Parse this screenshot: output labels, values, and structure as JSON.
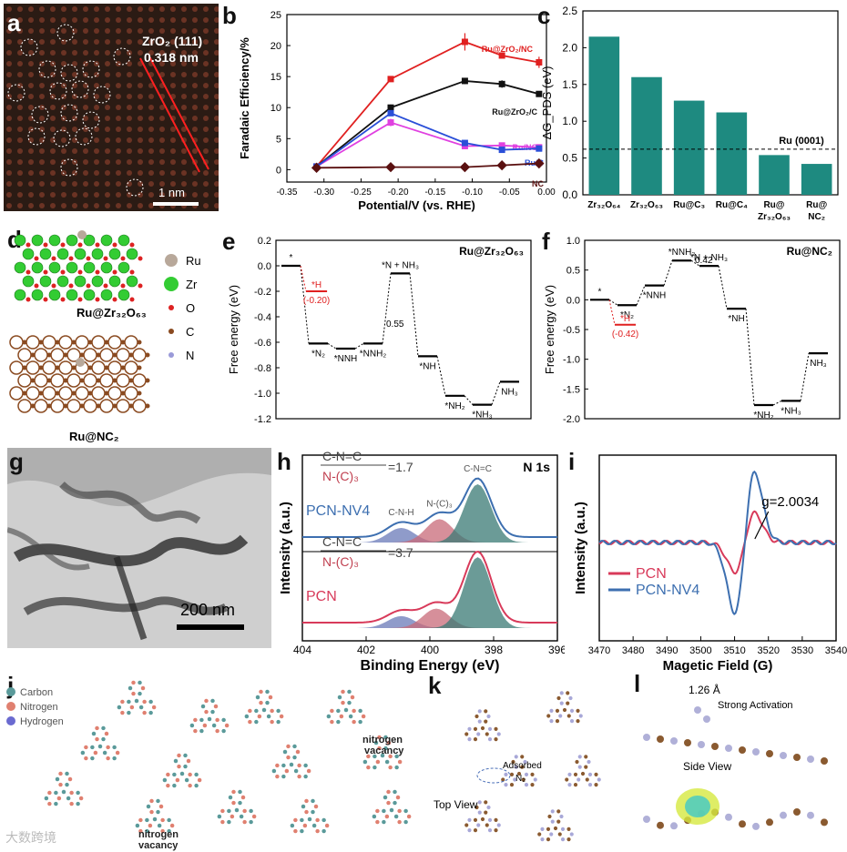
{
  "colors": {
    "teal": "#1e8a80",
    "red": "#e02020",
    "black": "#111111",
    "blue": "#2a4fd8",
    "magenta": "#e040e0",
    "darkred": "#5a1010",
    "pcn_red": "#d83a5a",
    "pcn_blue": "#3d6fb0",
    "tem_bg": "#2a1a12"
  },
  "panel_labels": {
    "a": "a",
    "b": "b",
    "c": "c",
    "d": "d",
    "e": "e",
    "f": "f",
    "g": "g",
    "h": "h",
    "i": "i",
    "j": "j",
    "k": "k",
    "l": "l"
  },
  "panel_a": {
    "label_line1": "ZrO₂ (111)",
    "label_line2": "0.318 nm",
    "scalebar": "1 nm"
  },
  "panel_d": {
    "legend": [
      "Ru",
      "Zr",
      "O",
      "C",
      "N"
    ],
    "legend_colors": [
      "#b8a89a",
      "#33cc33",
      "#dd2222",
      "#8a4a20",
      "#9a9ad8"
    ],
    "caption1": "Ru@Zr₃₂O₆₃",
    "caption2": "Ru@NC₂"
  },
  "panel_g": {
    "scalebar": "200 nm"
  },
  "panel_j": {
    "legend": [
      "Carbon",
      "Nitrogen",
      "Hydrogen"
    ],
    "legend_colors": [
      "#5a9a9a",
      "#e08070",
      "#6a6ad0"
    ],
    "annot1": "nitrogen\nvacancy",
    "annot2": "nitrogen\nvacancy"
  },
  "panel_k": {
    "annot_adsorbed": "Adsorbed",
    "annot_n2": "N₂",
    "annot_top": "Top View"
  },
  "panel_l": {
    "annot_bond": "1.26 Å",
    "annot_strong": "Strong Activation",
    "annot_side": "Side View"
  },
  "watermark": "大数跨境",
  "chart_data": [
    {
      "id": "b",
      "type": "line",
      "xlabel": "Potential/V (vs. RHE)",
      "ylabel": "Faradaic Efficiency/%",
      "xlim": [
        -0.35,
        0.0
      ],
      "ylim": [
        -2,
        25
      ],
      "xticks": [
        -0.35,
        -0.3,
        -0.25,
        -0.2,
        -0.15,
        -0.1,
        -0.05,
        0.0
      ],
      "xtick_labels": [
        "-0.35",
        "-0.30",
        "-0.25",
        "-0.20",
        "-0.15",
        "-0.10",
        "-0.05",
        "0.00"
      ],
      "yticks": [
        0,
        5,
        10,
        15,
        20,
        25
      ],
      "x": [
        -0.31,
        -0.21,
        -0.11,
        -0.06,
        -0.01
      ],
      "series": [
        {
          "name": "Ru@ZrO₂/NC",
          "color": "#e02020",
          "values": [
            0.5,
            14.6,
            20.6,
            18.4,
            17.3
          ],
          "err": [
            0,
            0.4,
            1.4,
            0.4,
            0.9
          ]
        },
        {
          "name": "Ru@ZrO₂/C",
          "color": "#111111",
          "values": [
            0.5,
            10.0,
            14.3,
            13.8,
            12.2
          ],
          "err": [
            0,
            0.5,
            0.5,
            0.6,
            0.4
          ]
        },
        {
          "name": "Ru/NC",
          "color": "#e040e0",
          "values": [
            0.5,
            7.6,
            3.8,
            3.9,
            3.6
          ],
          "err": [
            0,
            0.6,
            0.3,
            0.3,
            0.3
          ]
        },
        {
          "name": "Ru/C",
          "color": "#2a4fd8",
          "values": [
            0.5,
            9.1,
            4.3,
            3.2,
            3.4
          ],
          "err": [
            0,
            0.4,
            0.3,
            0.3,
            0.3
          ]
        },
        {
          "name": "NC",
          "color": "#5a1010",
          "values": [
            0.3,
            0.4,
            0.4,
            0.7,
            1.0
          ],
          "err": [
            0,
            0,
            0,
            0,
            0
          ]
        }
      ]
    },
    {
      "id": "c",
      "type": "bar",
      "ylabel": "ΔG_PDS (eV)",
      "ylim": [
        0,
        2.5
      ],
      "yticks": [
        0.0,
        0.5,
        1.0,
        1.5,
        2.0,
        2.5
      ],
      "ytick_labels": [
        "0.0",
        "0.5",
        "1.0",
        "1.5",
        "2.0",
        "2.5"
      ],
      "categories": [
        "Zr₃₂O₆₄",
        "Zr₃₂O₆₃",
        "Ru@C₃",
        "Ru@C₄",
        "Ru@ Zr₃₂O₆₃",
        "Ru@ NC₂"
      ],
      "values": [
        2.15,
        1.6,
        1.28,
        1.12,
        0.54,
        0.42
      ],
      "reference": {
        "label": "Ru (0001)",
        "value": 0.62
      }
    },
    {
      "id": "e",
      "type": "line",
      "title": "Ru@Zr₃₂O₆₃",
      "ylabel": "Free energy (eV)",
      "ylim": [
        -1.2,
        0.2
      ],
      "yticks": [
        0.2,
        0.0,
        -0.2,
        -0.4,
        -0.6,
        -0.8,
        -1.0,
        -1.2
      ],
      "ytick_labels": [
        "0.2",
        "0.0",
        "-0.2",
        "-0.4",
        "-0.6",
        "-0.8",
        "-1.0",
        "-1.2"
      ],
      "steps": [
        {
          "label": "*",
          "value": 0.0
        },
        {
          "label": "*N₂",
          "value": -0.61
        },
        {
          "label": "*NNH",
          "value": -0.65
        },
        {
          "label": "*NNH₂",
          "value": -0.61
        },
        {
          "label": "*N + NH₃",
          "value": -0.06
        },
        {
          "label": "*NH",
          "value": -0.71
        },
        {
          "label": "*NH₂",
          "value": -1.02
        },
        {
          "label": "*NH₃",
          "value": -1.09
        },
        {
          "label": "NH₃",
          "value": -0.91
        }
      ],
      "side": {
        "label": "*H",
        "value": -0.2,
        "value_label": "(-0.20)"
      },
      "barrier_label": "0.55"
    },
    {
      "id": "f",
      "type": "line",
      "title": "Ru@NC₂",
      "ylabel": "Free energy (eV)",
      "ylim": [
        -2.0,
        1.0
      ],
      "yticks": [
        1.0,
        0.5,
        0.0,
        -0.5,
        -1.0,
        -1.5,
        -2.0
      ],
      "ytick_labels": [
        "1.0",
        "0.5",
        "0.0",
        "-0.5",
        "-1.0",
        "-1.5",
        "-2.0"
      ],
      "steps": [
        {
          "label": "*",
          "value": 0.0
        },
        {
          "label": "*N₂",
          "value": -0.09
        },
        {
          "label": "*NNH",
          "value": 0.24
        },
        {
          "label": "*NNH₂",
          "value": 0.66
        },
        {
          "label": "*N + NH₃",
          "value": 0.57
        },
        {
          "label": "*NH",
          "value": -0.15
        },
        {
          "label": "*NH₂",
          "value": -1.77
        },
        {
          "label": "*NH₃",
          "value": -1.7
        },
        {
          "label": "NH₃",
          "value": -0.9
        }
      ],
      "side": {
        "label": "*H",
        "value": -0.42,
        "value_label": "(-0.42)"
      },
      "barrier_label": "0.42"
    },
    {
      "id": "h",
      "type": "area",
      "title": "N 1s",
      "xlabel": "Binding Energy (eV)",
      "ylabel": "Intensity (a.u.)",
      "xlim": [
        404,
        396
      ],
      "xticks": [
        404,
        402,
        400,
        398,
        396
      ],
      "samples": [
        {
          "name": "PCN-NV4",
          "ratio_num": "C-N=C",
          "ratio_den": "N-(C)₃",
          "ratio_val": "=1.7",
          "peaks": [
            {
              "label": "C-N=C",
              "center": 398.5,
              "amp": 0.8
            },
            {
              "label": "N-(C)₃",
              "center": 399.7,
              "amp": 0.32
            },
            {
              "label": "C-N-H",
              "center": 400.9,
              "amp": 0.2
            }
          ]
        },
        {
          "name": "PCN",
          "ratio_num": "C-N=C",
          "ratio_den": "N-(C)₃",
          "ratio_val": "=3.7",
          "peaks": [
            {
              "label": "C-N=C",
              "center": 398.5,
              "amp": 0.95
            },
            {
              "label": "N-(C)₃",
              "center": 399.8,
              "amp": 0.26
            },
            {
              "label": "C-N-H",
              "center": 400.9,
              "amp": 0.16
            }
          ]
        }
      ]
    },
    {
      "id": "i",
      "type": "line",
      "xlabel": "Magetic Field (G)",
      "ylabel": "Intensity (a.u.)",
      "xlim": [
        3470,
        3540
      ],
      "xticks": [
        3470,
        3480,
        3490,
        3500,
        3510,
        3520,
        3530,
        3540
      ],
      "annotation": "g=2.0034",
      "series": [
        {
          "name": "PCN",
          "color": "#d83a5a",
          "amp": 0.42
        },
        {
          "name": "PCN-NV4",
          "color": "#3d6fb0",
          "amp": 1.0
        }
      ]
    }
  ]
}
